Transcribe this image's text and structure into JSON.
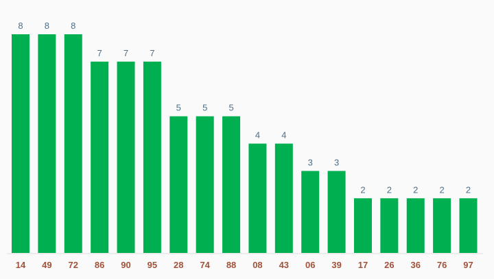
{
  "chart_data": {
    "type": "bar",
    "categories": [
      "14",
      "49",
      "72",
      "86",
      "90",
      "95",
      "28",
      "74",
      "88",
      "08",
      "43",
      "06",
      "39",
      "17",
      "26",
      "36",
      "76",
      "97"
    ],
    "values": [
      8,
      8,
      8,
      7,
      7,
      7,
      5,
      5,
      5,
      4,
      4,
      3,
      3,
      2,
      2,
      2,
      2,
      2
    ],
    "ylim": [
      0,
      8
    ],
    "grid": false,
    "legend": "none",
    "data_labels": true,
    "colors": {
      "bar": "#00b050",
      "data_label": "#4f6f86",
      "tick_label": "#a0523a",
      "axis": "#dddddd",
      "background": "#fafafa"
    }
  }
}
